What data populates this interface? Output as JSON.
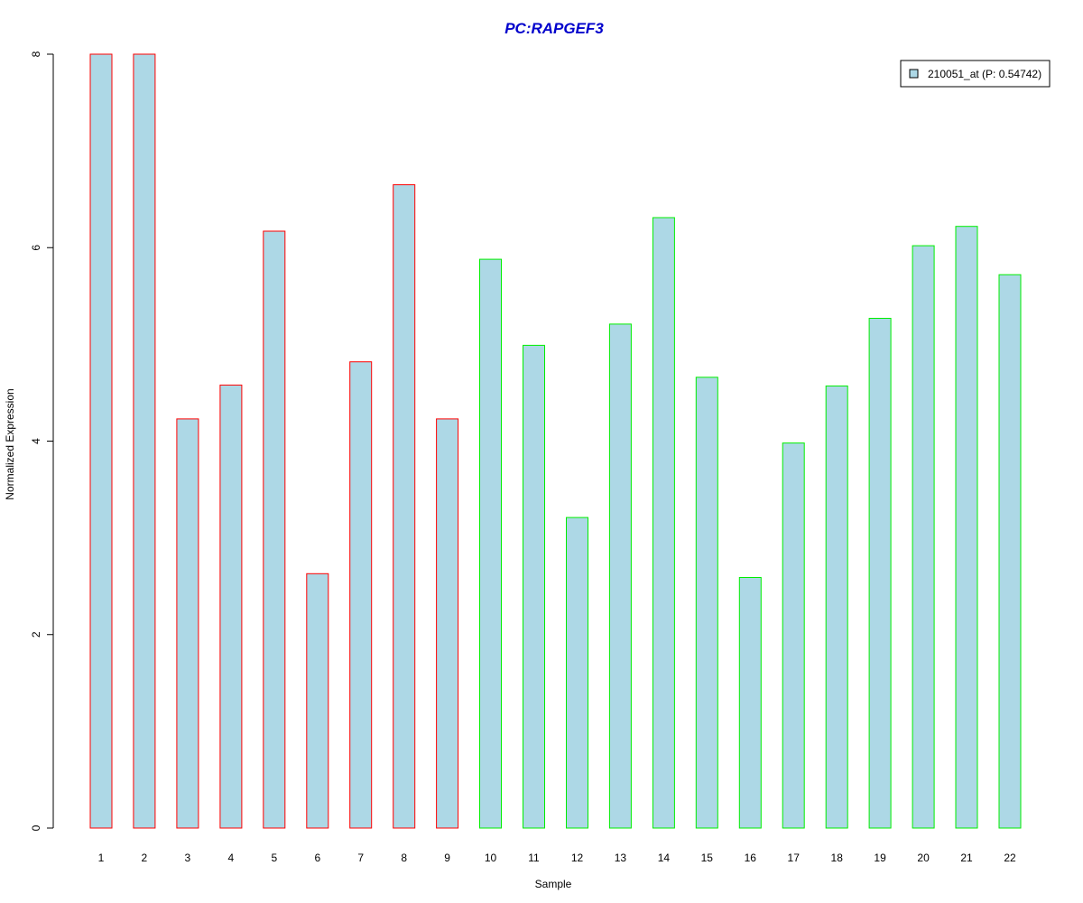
{
  "chart_data": {
    "type": "bar",
    "title": "PC:RAPGEF3",
    "title_color": "#0000cc",
    "xlabel": "Sample",
    "ylabel": "Normalized Expression",
    "ylim": [
      0,
      8
    ],
    "yticks": [
      0,
      2,
      4,
      6,
      8
    ],
    "grid": false,
    "legend_position": "top-right",
    "fill_color": "#add8e6",
    "categories": [
      "1",
      "2",
      "3",
      "4",
      "5",
      "6",
      "7",
      "8",
      "9",
      "10",
      "11",
      "12",
      "13",
      "14",
      "15",
      "16",
      "17",
      "18",
      "19",
      "20",
      "21",
      "22"
    ],
    "series": [
      {
        "name": "210051_at (P: 0.54742)",
        "values": [
          8.0,
          8.0,
          4.23,
          4.58,
          6.17,
          2.63,
          4.82,
          6.65,
          4.23,
          5.88,
          4.99,
          3.21,
          5.21,
          6.31,
          4.66,
          2.59,
          3.98,
          4.57,
          5.27,
          6.02,
          6.22,
          5.72
        ]
      }
    ],
    "groups": [
      {
        "border_color": "#ff0000",
        "samples": [
          "1",
          "2",
          "3",
          "4",
          "5",
          "6",
          "7",
          "8",
          "9"
        ]
      },
      {
        "border_color": "#00ee00",
        "samples": [
          "10",
          "11",
          "12",
          "13",
          "14",
          "15",
          "16",
          "17",
          "18",
          "19",
          "20",
          "21",
          "22"
        ]
      }
    ]
  }
}
